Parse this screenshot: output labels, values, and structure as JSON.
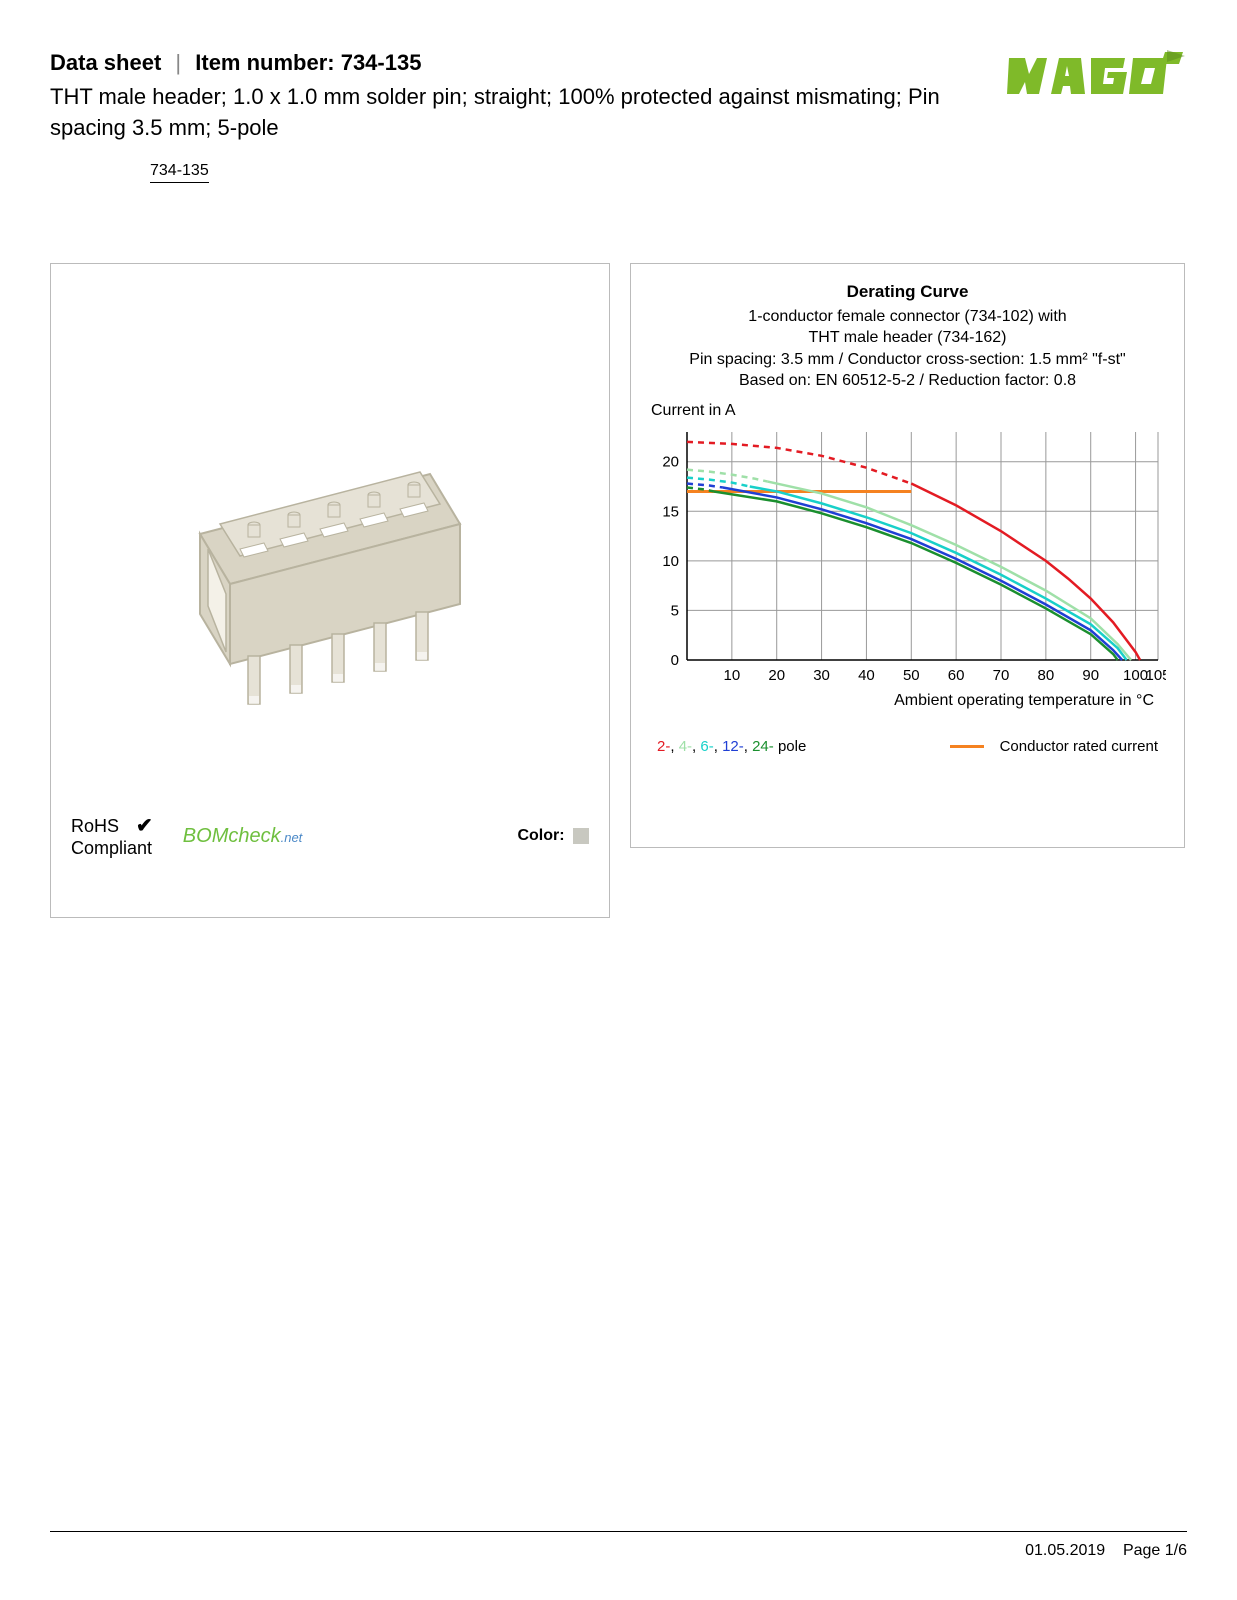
{
  "header": {
    "datasheet_label": "Data sheet",
    "item_label": "Item number: 734-135",
    "subtitle": "THT male header; 1.0 x 1.0 mm solder pin; straight; 100% protected against mismating; Pin spacing 3.5 mm; 5-pole",
    "item_link": "734-135"
  },
  "logo": {
    "text": "WAGO",
    "fill": "#7fba29",
    "accent": "#5a8a1e"
  },
  "left_panel": {
    "rohs_line1": "RoHS",
    "rohs_line2": "Compliant",
    "bomcheck_main": "BOMcheck",
    "bomcheck_suffix": ".net",
    "color_label": "Color:",
    "color_swatch": "#c8c8c0",
    "product_body_fill": "#d9d4c4",
    "product_body_stroke": "#b8b39f",
    "product_pin_fill": "#e6e2d6"
  },
  "chart": {
    "title": "Derating Curve",
    "sub1": "1-conductor female connector (734-102) with",
    "sub2": "THT male header (734-162)",
    "sub3": "Pin spacing: 3.5 mm / Conductor cross-section: 1.5 mm² \"f-st\"",
    "sub4": "Based on: EN 60512-5-2 / Reduction factor: 0.8",
    "y_axis_label": "Current in A",
    "x_axis_label": "Ambient operating temperature in °C",
    "x_ticks": [
      0,
      10,
      20,
      30,
      40,
      50,
      60,
      70,
      80,
      90,
      100,
      105
    ],
    "y_ticks": [
      0,
      5,
      10,
      15,
      20
    ],
    "y_max": 23,
    "grid_color": "#999999",
    "rated_current": {
      "color": "#f58220",
      "value": 17,
      "x_end": 50
    },
    "series": [
      {
        "name": "2-pole",
        "color": "#e31b23",
        "dash": true,
        "points": [
          [
            0,
            22
          ],
          [
            10,
            21.8
          ],
          [
            20,
            21.4
          ],
          [
            30,
            20.6
          ],
          [
            40,
            19.4
          ],
          [
            50,
            17.8
          ]
        ]
      },
      {
        "name": "2-pole-solid",
        "color": "#e31b23",
        "dash": false,
        "points": [
          [
            50,
            17.8
          ],
          [
            60,
            15.6
          ],
          [
            70,
            13.0
          ],
          [
            80,
            10.0
          ],
          [
            85,
            8.2
          ],
          [
            90,
            6.2
          ],
          [
            95,
            3.8
          ],
          [
            100,
            0.8
          ],
          [
            101,
            0
          ]
        ]
      },
      {
        "name": "4-pole-dash",
        "color": "#9fe0a8",
        "dash": true,
        "points": [
          [
            0,
            19.2
          ],
          [
            5,
            19.0
          ],
          [
            10,
            18.7
          ],
          [
            15,
            18.3
          ],
          [
            18,
            18.0
          ]
        ]
      },
      {
        "name": "4-pole",
        "color": "#9fe0a8",
        "dash": false,
        "points": [
          [
            18,
            18.0
          ],
          [
            30,
            16.8
          ],
          [
            40,
            15.4
          ],
          [
            50,
            13.6
          ],
          [
            60,
            11.6
          ],
          [
            70,
            9.4
          ],
          [
            80,
            7.0
          ],
          [
            90,
            4.2
          ],
          [
            96,
            1.6
          ],
          [
            99,
            0
          ]
        ]
      },
      {
        "name": "6-pole-dash",
        "color": "#18d0c9",
        "dash": true,
        "points": [
          [
            0,
            18.4
          ],
          [
            5,
            18.2
          ],
          [
            10,
            17.9
          ],
          [
            14,
            17.5
          ]
        ]
      },
      {
        "name": "6-pole",
        "color": "#18d0c9",
        "dash": false,
        "points": [
          [
            14,
            17.5
          ],
          [
            20,
            17.0
          ],
          [
            30,
            15.8
          ],
          [
            40,
            14.4
          ],
          [
            50,
            12.8
          ],
          [
            60,
            10.8
          ],
          [
            70,
            8.6
          ],
          [
            80,
            6.2
          ],
          [
            90,
            3.6
          ],
          [
            96,
            1.2
          ],
          [
            98,
            0
          ]
        ]
      },
      {
        "name": "12-pole-dash",
        "color": "#1f3fd4",
        "dash": true,
        "points": [
          [
            0,
            17.8
          ],
          [
            5,
            17.6
          ],
          [
            8,
            17.4
          ]
        ]
      },
      {
        "name": "12-pole",
        "color": "#1f3fd4",
        "dash": false,
        "points": [
          [
            8,
            17.4
          ],
          [
            20,
            16.4
          ],
          [
            30,
            15.2
          ],
          [
            40,
            13.8
          ],
          [
            50,
            12.2
          ],
          [
            60,
            10.2
          ],
          [
            70,
            8.0
          ],
          [
            80,
            5.6
          ],
          [
            90,
            3.0
          ],
          [
            95,
            1.0
          ],
          [
            97,
            0
          ]
        ]
      },
      {
        "name": "24-pole-dash",
        "color": "#1a8f2e",
        "dash": true,
        "points": [
          [
            0,
            17.4
          ],
          [
            4,
            17.2
          ],
          [
            6,
            17.0
          ]
        ]
      },
      {
        "name": "24-pole",
        "color": "#1a8f2e",
        "dash": false,
        "points": [
          [
            6,
            17.0
          ],
          [
            20,
            16.0
          ],
          [
            30,
            14.8
          ],
          [
            40,
            13.4
          ],
          [
            50,
            11.8
          ],
          [
            60,
            9.8
          ],
          [
            70,
            7.6
          ],
          [
            80,
            5.2
          ],
          [
            90,
            2.6
          ],
          [
            95,
            0.6
          ],
          [
            96,
            0
          ]
        ]
      }
    ],
    "legend_poles": [
      {
        "label": "2-",
        "color": "#e31b23"
      },
      {
        "label": "4-",
        "color": "#9fe0a8"
      },
      {
        "label": "6-",
        "color": "#18d0c9"
      },
      {
        "label": "12-",
        "color": "#1f3fd4"
      },
      {
        "label": "24-",
        "color": "#1a8f2e"
      }
    ],
    "legend_poles_suffix": " pole",
    "legend_rated": "Conductor rated current"
  },
  "footer": {
    "date": "01.05.2019",
    "page": "Page 1/6"
  }
}
